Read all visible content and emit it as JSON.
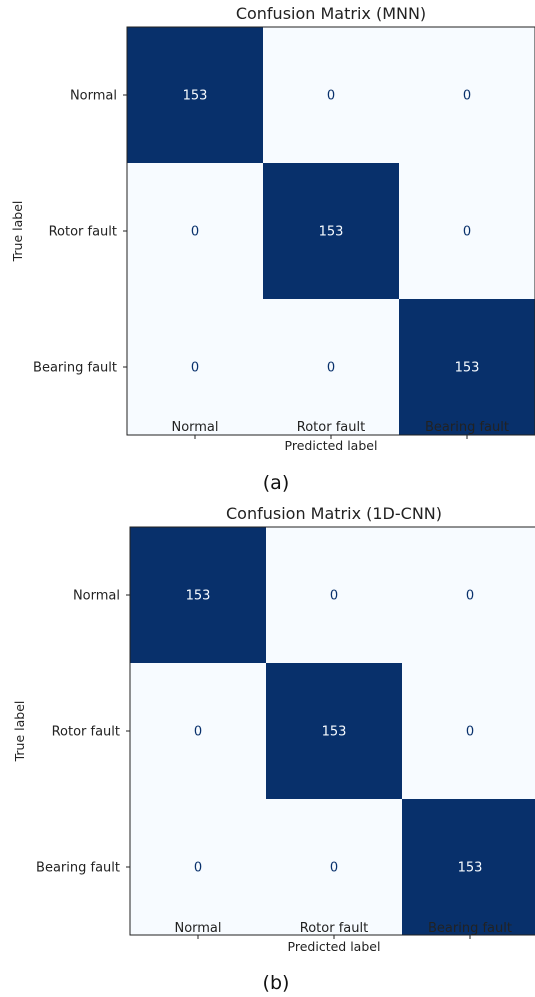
{
  "chart_data": [
    {
      "type": "heatmap",
      "title": "Confusion Matrix (MNN)",
      "xlabel": "Predicted label",
      "ylabel": "True label",
      "x_categories": [
        "Normal",
        "Rotor fault",
        "Bearing fault"
      ],
      "y_categories": [
        "Normal",
        "Rotor fault",
        "Bearing fault"
      ],
      "values": [
        [
          153,
          0,
          0
        ],
        [
          0,
          153,
          0
        ],
        [
          0,
          0,
          153
        ]
      ],
      "colormap": "Blues",
      "colors": {
        "high": "#08306b",
        "low": "#f7fbff",
        "text_on_high": "#f7fbff",
        "text_on_low": "#08306b"
      },
      "caption": "(a)"
    },
    {
      "type": "heatmap",
      "title": "Confusion Matrix (1D-CNN)",
      "xlabel": "Predicted label",
      "ylabel": "True label",
      "x_categories": [
        "Normal",
        "Rotor fault",
        "Bearing fault"
      ],
      "y_categories": [
        "Normal",
        "Rotor fault",
        "Bearing fault"
      ],
      "values": [
        [
          153,
          0,
          0
        ],
        [
          0,
          153,
          0
        ],
        [
          0,
          0,
          153
        ]
      ],
      "colormap": "Blues",
      "colors": {
        "high": "#08306b",
        "low": "#f7fbff",
        "text_on_high": "#f7fbff",
        "text_on_low": "#08306b"
      },
      "caption": "(b)"
    }
  ]
}
